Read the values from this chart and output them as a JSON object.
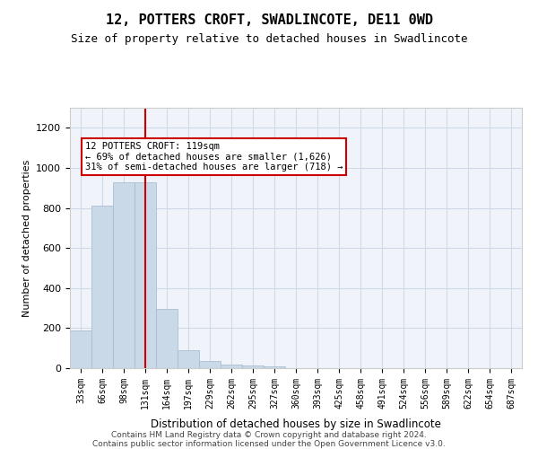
{
  "title": "12, POTTERS CROFT, SWADLINCOTE, DE11 0WD",
  "subtitle": "Size of property relative to detached houses in Swadlincote",
  "xlabel": "Distribution of detached houses by size in Swadlincote",
  "ylabel": "Number of detached properties",
  "categories": [
    "33sqm",
    "66sqm",
    "98sqm",
    "131sqm",
    "164sqm",
    "197sqm",
    "229sqm",
    "262sqm",
    "295sqm",
    "327sqm",
    "360sqm",
    "393sqm",
    "425sqm",
    "458sqm",
    "491sqm",
    "524sqm",
    "556sqm",
    "589sqm",
    "622sqm",
    "654sqm",
    "687sqm"
  ],
  "values": [
    190,
    810,
    930,
    930,
    295,
    88,
    35,
    20,
    15,
    10,
    0,
    0,
    0,
    0,
    0,
    0,
    0,
    0,
    0,
    0,
    0
  ],
  "bar_color": "#c9d9e8",
  "bar_edge_color": "#a0b8cc",
  "vline_x": 3,
  "vline_color": "#cc0000",
  "ylim": [
    0,
    1300
  ],
  "yticks": [
    0,
    200,
    400,
    600,
    800,
    1000,
    1200
  ],
  "annotation_text": "12 POTTERS CROFT: 119sqm\n← 69% of detached houses are smaller (1,626)\n31% of semi-detached houses are larger (718) →",
  "annotation_box_color": "#ffffff",
  "annotation_box_edge_color": "#cc0000",
  "footer_line1": "Contains HM Land Registry data © Crown copyright and database right 2024.",
  "footer_line2": "Contains public sector information licensed under the Open Government Licence v3.0.",
  "grid_color": "#d0d8e8",
  "background_color": "#f0f4fa"
}
